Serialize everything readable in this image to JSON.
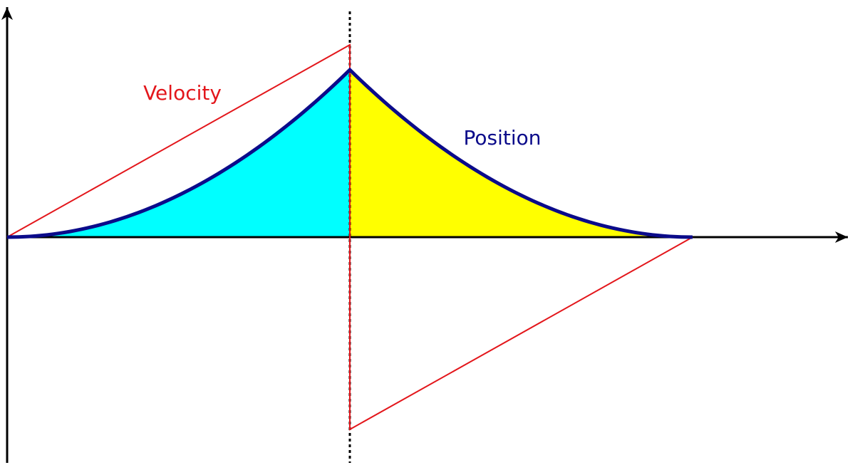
{
  "chart_data": {
    "type": "line",
    "title": "",
    "xlabel": "",
    "ylabel": "",
    "grid": false,
    "xlim": [
      0,
      2
    ],
    "ylim": [
      -1.18,
      1.18
    ],
    "switch_time": 1,
    "series": [
      {
        "name": "Velocity",
        "label": "Velocity",
        "color": "#e3161b",
        "shape": "linear",
        "points": [
          [
            0,
            0
          ],
          [
            1,
            1
          ],
          [
            1,
            -1
          ],
          [
            2,
            0
          ]
        ]
      },
      {
        "name": "Position",
        "label": "Position",
        "color": "#0b0b8a",
        "shape": "parabolic",
        "peak": 0.87,
        "fill_before_switch": "#00ffff",
        "fill_after_switch": "#ffff00"
      }
    ]
  }
}
